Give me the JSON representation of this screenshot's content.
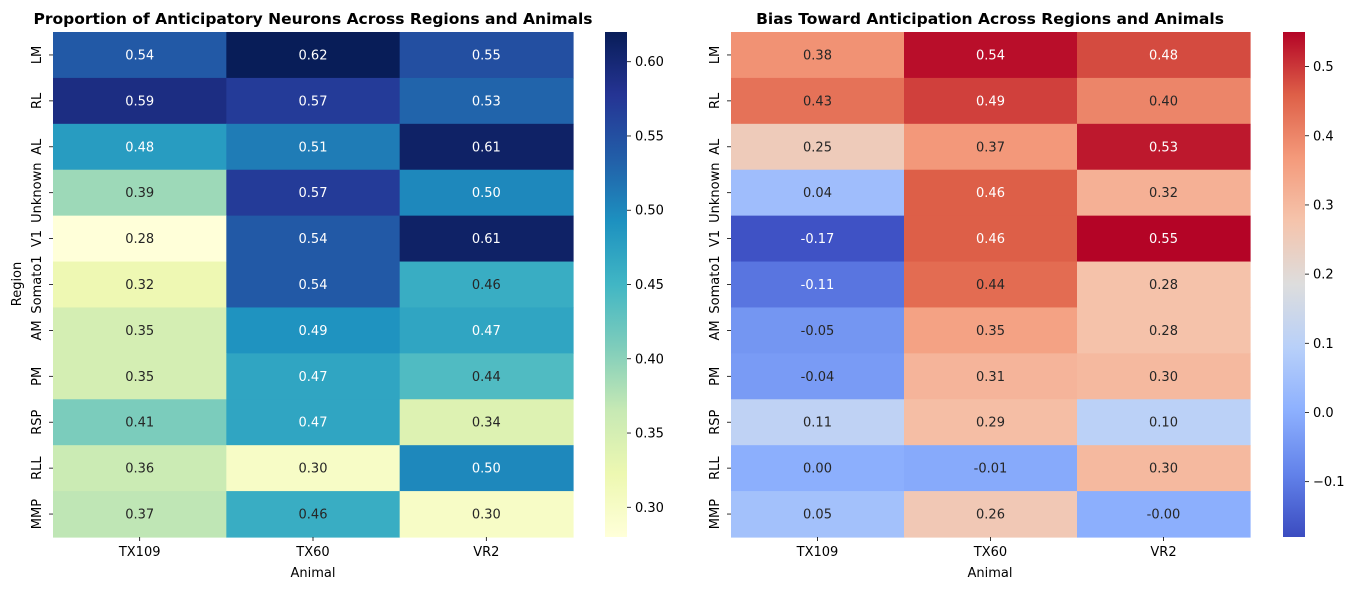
{
  "chart_data": [
    {
      "type": "heatmap",
      "title": "Proportion of Anticipatory Neurons Across Regions and Animals",
      "xlabel": "Animal",
      "ylabel": "Region",
      "x_categories": [
        "TX109",
        "TX60",
        "VR2"
      ],
      "y_categories": [
        "LM",
        "RL",
        "AL",
        "Unknown",
        "V1",
        "Somato1",
        "AM",
        "PM",
        "RSP",
        "RLL",
        "MMP"
      ],
      "values": [
        [
          0.54,
          0.62,
          0.55
        ],
        [
          0.59,
          0.57,
          0.53
        ],
        [
          0.48,
          0.51,
          0.61
        ],
        [
          0.39,
          0.57,
          0.5
        ],
        [
          0.28,
          0.54,
          0.61
        ],
        [
          0.32,
          0.54,
          0.46
        ],
        [
          0.35,
          0.49,
          0.47
        ],
        [
          0.35,
          0.47,
          0.44
        ],
        [
          0.41,
          0.47,
          0.34
        ],
        [
          0.36,
          0.3,
          0.5
        ],
        [
          0.37,
          0.46,
          0.3
        ]
      ],
      "labels": [
        [
          "0.54",
          "0.62",
          "0.55"
        ],
        [
          "0.59",
          "0.57",
          "0.53"
        ],
        [
          "0.48",
          "0.51",
          "0.61"
        ],
        [
          "0.39",
          "0.57",
          "0.50"
        ],
        [
          "0.28",
          "0.54",
          "0.61"
        ],
        [
          "0.32",
          "0.54",
          "0.46"
        ],
        [
          "0.35",
          "0.49",
          "0.47"
        ],
        [
          "0.35",
          "0.47",
          "0.44"
        ],
        [
          "0.41",
          "0.47",
          "0.34"
        ],
        [
          "0.36",
          "0.30",
          "0.50"
        ],
        [
          "0.37",
          "0.46",
          "0.30"
        ]
      ],
      "colormap": "YlGnBu",
      "vmin": 0.28,
      "vmax": 0.62,
      "colorbar_ticks": [
        0.3,
        0.35,
        0.4,
        0.45,
        0.5,
        0.55,
        0.6
      ],
      "colorbar_tick_labels": [
        "0.30",
        "0.35",
        "0.40",
        "0.45",
        "0.50",
        "0.55",
        "0.60"
      ]
    },
    {
      "type": "heatmap",
      "title": "Bias Toward Anticipation Across Regions and Animals",
      "xlabel": "Animal",
      "ylabel": "",
      "x_categories": [
        "TX109",
        "TX60",
        "VR2"
      ],
      "y_categories": [
        "LM",
        "RL",
        "AL",
        "Unknown",
        "V1",
        "Somato1",
        "AM",
        "PM",
        "RSP",
        "RLL",
        "MMP"
      ],
      "values": [
        [
          0.38,
          0.54,
          0.48
        ],
        [
          0.43,
          0.49,
          0.4
        ],
        [
          0.25,
          0.37,
          0.53
        ],
        [
          0.04,
          0.46,
          0.32
        ],
        [
          -0.17,
          0.46,
          0.55
        ],
        [
          -0.11,
          0.44,
          0.28
        ],
        [
          -0.05,
          0.35,
          0.28
        ],
        [
          -0.04,
          0.31,
          0.3
        ],
        [
          0.11,
          0.29,
          0.1
        ],
        [
          0.0,
          -0.01,
          0.3
        ],
        [
          0.05,
          0.26,
          -0.0
        ]
      ],
      "labels": [
        [
          "0.38",
          "0.54",
          "0.48"
        ],
        [
          "0.43",
          "0.49",
          "0.40"
        ],
        [
          "0.25",
          "0.37",
          "0.53"
        ],
        [
          "0.04",
          "0.46",
          "0.32"
        ],
        [
          "-0.17",
          "0.46",
          "0.55"
        ],
        [
          "-0.11",
          "0.44",
          "0.28"
        ],
        [
          "-0.05",
          "0.35",
          "0.28"
        ],
        [
          "-0.04",
          "0.31",
          "0.30"
        ],
        [
          "0.11",
          "0.29",
          "0.10"
        ],
        [
          "0.00",
          "-0.01",
          "0.30"
        ],
        [
          "0.05",
          "0.26",
          "-0.00"
        ]
      ],
      "colormap": "coolwarm",
      "vmin": -0.18,
      "vmax": 0.55,
      "center": 0,
      "colorbar_ticks": [
        -0.1,
        0.0,
        0.1,
        0.2,
        0.3,
        0.4,
        0.5
      ],
      "colorbar_tick_labels": [
        "−0.1",
        "0.0",
        "0.1",
        "0.2",
        "0.3",
        "0.4",
        "0.5"
      ]
    }
  ]
}
